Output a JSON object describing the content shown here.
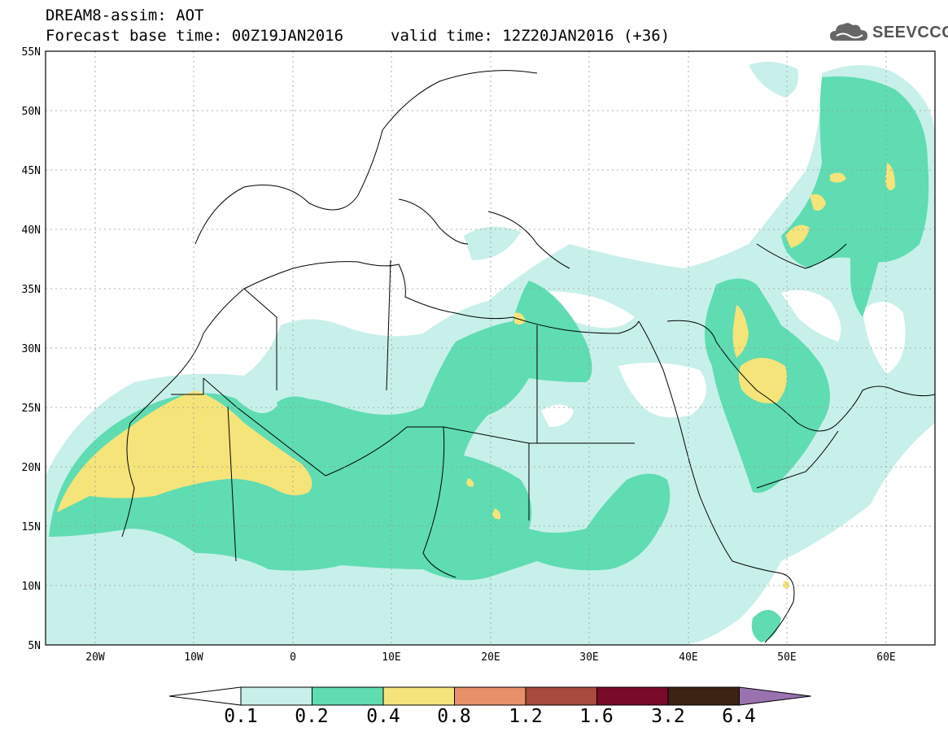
{
  "header": {
    "line1": "DREAM8-assim: AOT",
    "line2": "Forecast base time: 00Z19JAN2016",
    "valid": "valid time: 12Z20JAN2016 (+36)",
    "logo_text": "SEEVCCC",
    "logo_icon": "cloud-icon"
  },
  "axes": {
    "lat_labels": [
      "55N",
      "50N",
      "45N",
      "40N",
      "35N",
      "30N",
      "25N",
      "20N",
      "15N",
      "10N",
      "5N"
    ],
    "lon_labels": [
      "20W",
      "10W",
      "0",
      "10E",
      "20E",
      "30E",
      "40E",
      "50E",
      "60E"
    ]
  },
  "colorbar": {
    "labels": [
      "0.1",
      "0.2",
      "0.4",
      "0.8",
      "1.2",
      "1.6",
      "3.2",
      "6.4"
    ],
    "colors": [
      "#ffffff",
      "#c8f0ea",
      "#5fdcb2",
      "#f5e47a",
      "#e8906a",
      "#a84a3c",
      "#7a0a2a",
      "#3c2414",
      "#9a72b0"
    ]
  },
  "colors": {
    "aot_low": "#c8f0ea",
    "aot_mid": "#5fdcb2",
    "aot_high": "#f5e47a",
    "border": "#000000",
    "grid": "#888888"
  }
}
